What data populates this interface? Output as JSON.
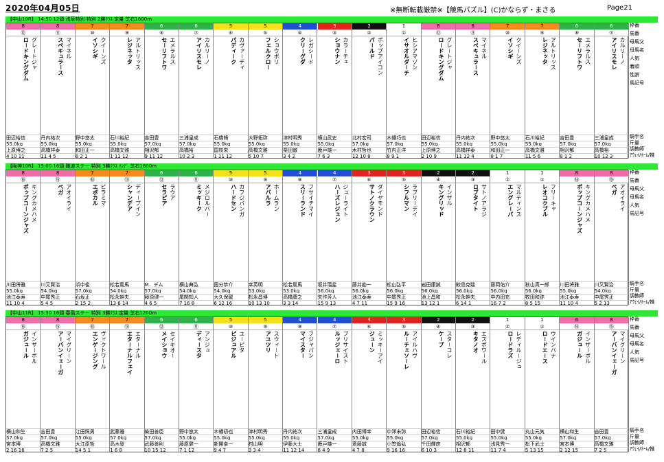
{
  "header": {
    "date": "2020年04月05日",
    "title": "※無断転載厳禁※【競馬パズル】(C)かならず・まさる",
    "page": "Page21"
  },
  "frame_colors": {
    "1": "#ffffff",
    "2": "#111111",
    "3": "#e0251e",
    "4": "#1f4fd6",
    "5": "#f4e11c",
    "6": "#2fb24a",
    "7": "#f58a1f",
    "8": "#f06ea8"
  },
  "side_labels": {
    "block1": [
      "枠番",
      "馬番",
      "母馬父",
      "母馬名",
      "人気",
      "着順",
      "性齢",
      "馬記号",
      "騎手名",
      "斤量",
      "調教師",
      "ｱｳｪｲ/ﾎｰﾑ/推"
    ],
    "block2": [
      "枠番",
      "馬番",
      "母馬父",
      "母馬名",
      "人気",
      "馬記号",
      "騎手名",
      "斤量",
      "調教師",
      "ｱｳｪｲ/ﾎｰﾑ/推"
    ],
    "block3": [
      "枠番",
      "馬番",
      "母馬父",
      "母馬名",
      "人気",
      "馬記号",
      "騎手名",
      "斤量",
      "調教師",
      "ｱｳｪｲ/ﾎｰﾑ/推"
    ]
  },
  "races": [
    {
      "bar": "【中山10R】 14:50 12頭 浅草特別  特別  2勝ｸﾗｽ 定量 芝右1600m",
      "horses": [
        {
          "frame": "8",
          "num": "⑫",
          "name": "ロ－ドキングダム",
          "sire": "グレ－トジャ",
          "jockey": "田辺裕信",
          "weight": "55.0kg",
          "trainer": "上原博之",
          "nums": "4 10 11"
        },
        {
          "frame": "8",
          "num": "⑪",
          "name": "スペキュラ－ス",
          "sire": "マイネル",
          "jockey": "丹内祐次",
          "weight": "55.0kg",
          "trainer": "高橋祥泰",
          "nums": "11 4 5"
        },
        {
          "frame": "7",
          "num": "⑩",
          "name": "イソシギ",
          "sire": "クイ－ンズ",
          "jockey": "野中悠太",
          "weight": "55.0kg",
          "trainer": "和田正一",
          "nums": "6 2 1"
        },
        {
          "frame": "7",
          "num": "⑨",
          "name": "レジネッタ",
          "sire": "アルトリッス",
          "jockey": "石川裕紀",
          "weight": "55.0kg",
          "trainer": "高橋文雅",
          "nums": "1 11 12"
        },
        {
          "frame": "6",
          "num": "⑧",
          "name": "セ－リフトワ",
          "sire": "エメラルス",
          "jockey": "吉田豊",
          "weight": "57.0kg",
          "trainer": "相沢郁",
          "nums": "9 11 12"
        },
        {
          "frame": "6",
          "num": "⑦",
          "name": "アイリスモレ",
          "sire": "カルリ－ノ",
          "jockey": "三浦皇成",
          "weight": "57.0kg",
          "trainer": "高橋裕",
          "nums": "10 2 3"
        },
        {
          "frame": "5",
          "num": "⑥",
          "name": "パディ－ク",
          "sire": "カヴァ－ディ",
          "jockey": "石橋脩",
          "weight": "55.0kg",
          "trainer": "国枝栄",
          "nums": "1 11 12"
        },
        {
          "frame": "5",
          "num": "⑤",
          "name": "フェルクロ－",
          "sire": "ショウポリ",
          "jockey": "大野拓弥",
          "weight": "55.0kg",
          "trainer": "高橋文雅",
          "nums": "5 10 7"
        },
        {
          "frame": "4",
          "num": "④",
          "name": "クリ－グダ",
          "sire": "レガシ－ド",
          "jockey": "津村明秀",
          "weight": "55.0kg",
          "trainer": "栗田徹",
          "nums": "3 4 2"
        },
        {
          "frame": "3",
          "num": "③",
          "name": "ショウナン",
          "sire": "カラ－チェ",
          "jockey": "横山武史",
          "weight": "55.0kg",
          "trainer": "鹿戸雄一",
          "nums": "7 6 3"
        },
        {
          "frame": "2",
          "num": "②",
          "name": "パ－ルド",
          "sire": "ポップアイコン",
          "jockey": "北村宏司",
          "weight": "57.0kg",
          "trainer": "木村哲也",
          "nums": "12 10 8"
        },
        {
          "frame": "1",
          "num": "①",
          "name": "イサオルダ－チ",
          "sire": "ヒシアマゾン",
          "jockey": "木幡巧也",
          "weight": "57.0kg",
          "trainer": "竹内正洋",
          "nums": "8 9 1"
        },
        {
          "frame": "8",
          "num": "⑫",
          "name": "ロ－ドキングダム",
          "sire": "グレ－トジャ",
          "jockey": "田辺裕信",
          "weight": "55.0kg",
          "trainer": "上原博之",
          "nums": "2 10 9"
        },
        {
          "frame": "8",
          "num": "⑪",
          "name": "スペキュラ－ス",
          "sire": "マイネル",
          "jockey": "丹内祐次",
          "weight": "55.0kg",
          "trainer": "高橋祥泰",
          "nums": "11 12 4"
        },
        {
          "frame": "7",
          "num": "⑩",
          "name": "イソシギ",
          "sire": "クイ－ンズ",
          "jockey": "野中悠太",
          "weight": "55.0kg",
          "trainer": "和田正一",
          "nums": "8 1 7"
        },
        {
          "frame": "7",
          "num": "⑨",
          "name": "レジネッタ",
          "sire": "アルトリッス",
          "jockey": "石川裕紀",
          "weight": "55.0kg",
          "trainer": "高橋文雅",
          "nums": "11 5 6"
        },
        {
          "frame": "6",
          "num": "⑧",
          "name": "セ－リフトワ",
          "sire": "エメラルス",
          "jockey": "吉田豊",
          "weight": "57.0kg",
          "trainer": "相沢郁",
          "nums": "8 1 2"
        },
        {
          "frame": "6",
          "num": "⑦",
          "name": "アイリスモレ",
          "sire": "カルリ－ノ",
          "jockey": "三浦皇成",
          "weight": "57.0kg",
          "trainer": "高橋裕",
          "nums": "10 12 3"
        }
      ]
    },
    {
      "bar": "【阪神10R】 15:00 16頭 難波ステ－ 特別  3勝ｸﾗｽ ﾊﾝﾃﾞ 芝右1800m",
      "horses": [
        {
          "frame": "8",
          "num": "⑯",
          "name": "ポップコ－ンジャズ",
          "sire": "キングカメハメ",
          "jockey": "川田将雅",
          "weight": "55.0kg",
          "trainer": "池江泰寿",
          "nums": "11 10 4"
        },
        {
          "frame": "8",
          "num": "⑮",
          "name": "ベガ",
          "sire": "アオイライ",
          "jockey": "川又賢治",
          "weight": "54.0kg",
          "trainer": "中尾秀正",
          "nums": "5 4 5"
        },
        {
          "frame": "7",
          "num": "⑭",
          "name": "エボカル",
          "sire": "ビラミマ",
          "jockey": "浜中俊",
          "weight": "57.0kg",
          "trainer": "石坂正",
          "nums": "2 15 2"
        },
        {
          "frame": "7",
          "num": "⑬",
          "name": "シャンデア",
          "sire": "ディ－プイン",
          "jockey": "松若風馬",
          "weight": "54.0kg",
          "trainer": "松永幹夫",
          "nums": "13 6 14"
        },
        {
          "frame": "6",
          "num": "⑫",
          "name": "セラピア",
          "sire": "ラウア",
          "jockey": "M．デム",
          "weight": "57.0kg",
          "trainer": "藤原健一",
          "nums": "4 6 5"
        },
        {
          "frame": "6",
          "num": "⑪",
          "name": "ミッキ－ク",
          "sire": "メジロルバ－",
          "jockey": "横山典弘",
          "weight": "54.0kg",
          "trainer": "尾関知人",
          "nums": "7 16 8"
        },
        {
          "frame": "5",
          "num": "⑩",
          "name": "ハ－ドセン",
          "sire": "カフジバンガ",
          "jockey": "国分恭介",
          "weight": "54.0kg",
          "trainer": "大久保龍",
          "nums": "6 12 16"
        },
        {
          "frame": "5",
          "num": "⑨",
          "name": "アバルラ",
          "sire": "ホ－ムラン",
          "jockey": "幸英明",
          "weight": "53.0kg",
          "trainer": "松永昌博",
          "nums": "10 13 10"
        },
        {
          "frame": "4",
          "num": "⑧",
          "name": "スリ－ランド",
          "sire": "フサイチマイ",
          "jockey": "松若風馬",
          "weight": "53.0kg",
          "trainer": "高橋康之",
          "nums": "3 3 14"
        },
        {
          "frame": "4",
          "num": "⑦",
          "name": "ハ－ズレジェン",
          "sire": "ジュ－ライト",
          "jockey": "坂井瑠星",
          "weight": "56.0kg",
          "trainer": "矢作芳人",
          "nums": "15 9 13"
        },
        {
          "frame": "3",
          "num": "⑥",
          "name": "サトノクラウン",
          "sire": "ダイヤモンド",
          "jockey": "藤井勘一",
          "weight": "56.0kg",
          "trainer": "池江泰寿",
          "nums": "4 7 11"
        },
        {
          "frame": "3",
          "num": "⑤",
          "name": "シフルマン",
          "sire": "ラブリ－デイ",
          "jockey": "松山弘平",
          "weight": "56.0kg",
          "trainer": "中尾秀正",
          "nums": "15 9 16"
        },
        {
          "frame": "2",
          "num": "④",
          "name": "キングリッド",
          "sire": "インザル",
          "jockey": "岩田康誠",
          "weight": "56.0kg",
          "trainer": "池上昌和",
          "nums": "13 12 1"
        },
        {
          "frame": "2",
          "num": "③",
          "name": "ロブタイト",
          "sire": "サトノアラジ",
          "jockey": "鮫島克駿",
          "weight": "56.0kg",
          "trainer": "松永幹夫",
          "nums": "6 14 1"
        },
        {
          "frame": "1",
          "num": "②",
          "name": "エングレ－バ",
          "sire": "マルティンス",
          "jockey": "藤岡佑介",
          "weight": "56.0kg",
          "trainer": "中内田充",
          "nums": "16 7 2"
        },
        {
          "frame": "1",
          "num": "①",
          "name": "レオコクブル",
          "sire": "フリ－キャ",
          "jockey": "秋山真一郎",
          "weight": "56.0kg",
          "trainer": "牧田和弥",
          "nums": "8 5 15"
        },
        {
          "frame": "8",
          "num": "⑯",
          "name": "ポップコ－ンジャズ",
          "sire": "キングカメハメ",
          "jockey": "川田将雅",
          "weight": "55.0kg",
          "trainer": "池江泰寿",
          "nums": "11 10 4"
        },
        {
          "frame": "8",
          "num": "⑮",
          "name": "ベガ",
          "sire": "アオイライ",
          "jockey": "川又賢治",
          "weight": "54.0kg",
          "trainer": "中尾秀正",
          "nums": "5 2 13"
        }
      ]
    },
    {
      "bar": "【中山11R】 15:30 16頭 春風ステ－ 特別  3勝ｸﾗｽ 定量 芝右1200m",
      "horses": [
        {
          "frame": "8",
          "num": "⑯",
          "name": "ガジュ－ル",
          "sire": "インザ－ボル",
          "jockey": "横山和生",
          "weight": "57.0kg",
          "trainer": "宮本博",
          "nums": "2 16 16"
        },
        {
          "frame": "8",
          "num": "⑮",
          "name": "ア－バンイェ－ガ",
          "sire": "マイグリ－ン",
          "jockey": "吉田豊",
          "weight": "57.0kg",
          "trainer": "高橋文雅",
          "nums": "7 2 5"
        },
        {
          "frame": "7",
          "num": "⑭",
          "name": "エンゲ－ジング",
          "sire": "ヴィクトワ－ル",
          "jockey": "江田照男",
          "weight": "55.0kg",
          "trainer": "大江原哲",
          "nums": "14 5 1"
        },
        {
          "frame": "7",
          "num": "⑬",
          "name": "エタ－ナルフェイ",
          "sire": "エタ－ナル",
          "jockey": "武藤雅",
          "weight": "57.0kg",
          "trainer": "高木登",
          "nums": "1 6 8"
        },
        {
          "frame": "6",
          "num": "⑫",
          "name": "メイショウ",
          "sire": "セイキオ－",
          "jockey": "柴田善臣",
          "weight": "57.0kg",
          "trainer": "武藤善則",
          "nums": "10 15 12"
        },
        {
          "frame": "6",
          "num": "⑪",
          "name": "ディ－スタ",
          "sire": "アンジュ",
          "jockey": "野中悠太",
          "weight": "55.0kg",
          "trainer": "藤原健一",
          "nums": "7 1 12"
        },
        {
          "frame": "5",
          "num": "⑩",
          "name": "ピジュアル",
          "sire": "ユ－ピタ",
          "jockey": "木幡初也",
          "weight": "55.0kg",
          "trainer": "新開幸一",
          "nums": "9 4 7"
        },
        {
          "frame": "5",
          "num": "⑨",
          "name": "アユツリ",
          "sire": "スウィ－ト",
          "jockey": "津村明秀",
          "weight": "55.0kg",
          "trainer": "村山明",
          "nums": "3 3 4"
        },
        {
          "frame": "4",
          "num": "⑧",
          "name": "マイスタ－",
          "sire": "フジャパン",
          "jockey": "丹内祐次",
          "weight": "55.0kg",
          "trainer": "伊藤大士",
          "nums": "11 12 14"
        },
        {
          "frame": "4",
          "num": "⑦",
          "name": "ルッジェ－ロ",
          "sire": "ブリサイスト",
          "jockey": "三浦皇成",
          "weight": "57.0kg",
          "trainer": "鹿戸雄一",
          "nums": "6 4 9"
        },
        {
          "frame": "3",
          "num": "⑥",
          "name": "ジュ－ン",
          "sire": "ミッキ－アイ",
          "jockey": "内田博幸",
          "weight": "55.0kg",
          "trainer": "斎藤誠",
          "nums": "4 7 8"
        },
        {
          "frame": "3",
          "num": "⑤",
          "name": "ル－チェソ－レ",
          "sire": "アイルハヴ",
          "jockey": "中澤未弥",
          "weight": "55.0kg",
          "trainer": "小笠倫弘",
          "nums": "9 16 16"
        },
        {
          "frame": "2",
          "num": "④",
          "name": "ケ－プ",
          "sire": "スタ－コレ",
          "jockey": "田辺裕信",
          "weight": "57.0kg",
          "trainer": "千田輝彦",
          "nums": "6 10 3"
        },
        {
          "frame": "2",
          "num": "③",
          "name": "キタノオ",
          "sire": "エスポワ－ル",
          "jockey": "石川裕紀",
          "weight": "55.0kg",
          "trainer": "相沢郁",
          "nums": "12 8 11"
        },
        {
          "frame": "1",
          "num": "②",
          "name": "ロ－ドラズ",
          "sire": "レディル－ジュ",
          "jockey": "田中健",
          "weight": "55.0kg",
          "trainer": "浅見秀一",
          "nums": "11 7 4"
        },
        {
          "frame": "1",
          "num": "①",
          "name": "ロ－ドエ－ス",
          "sire": "ウインバナ",
          "jockey": "丸山元気",
          "weight": "55.0kg",
          "trainer": "松下武士",
          "nums": "5 13 15"
        },
        {
          "frame": "8",
          "num": "⑯",
          "name": "ガジュ－ル",
          "sire": "インザ－ボル",
          "jockey": "横山和生",
          "weight": "57.0kg",
          "trainer": "宮本博",
          "nums": "2 12 15"
        },
        {
          "frame": "8",
          "num": "⑮",
          "name": "ア－バンイェ－ガ",
          "sire": "マイグリ－ン",
          "jockey": "吉田豊",
          "weight": "57.0kg",
          "trainer": "高橋文雅",
          "nums": "7 2 5"
        }
      ]
    }
  ]
}
